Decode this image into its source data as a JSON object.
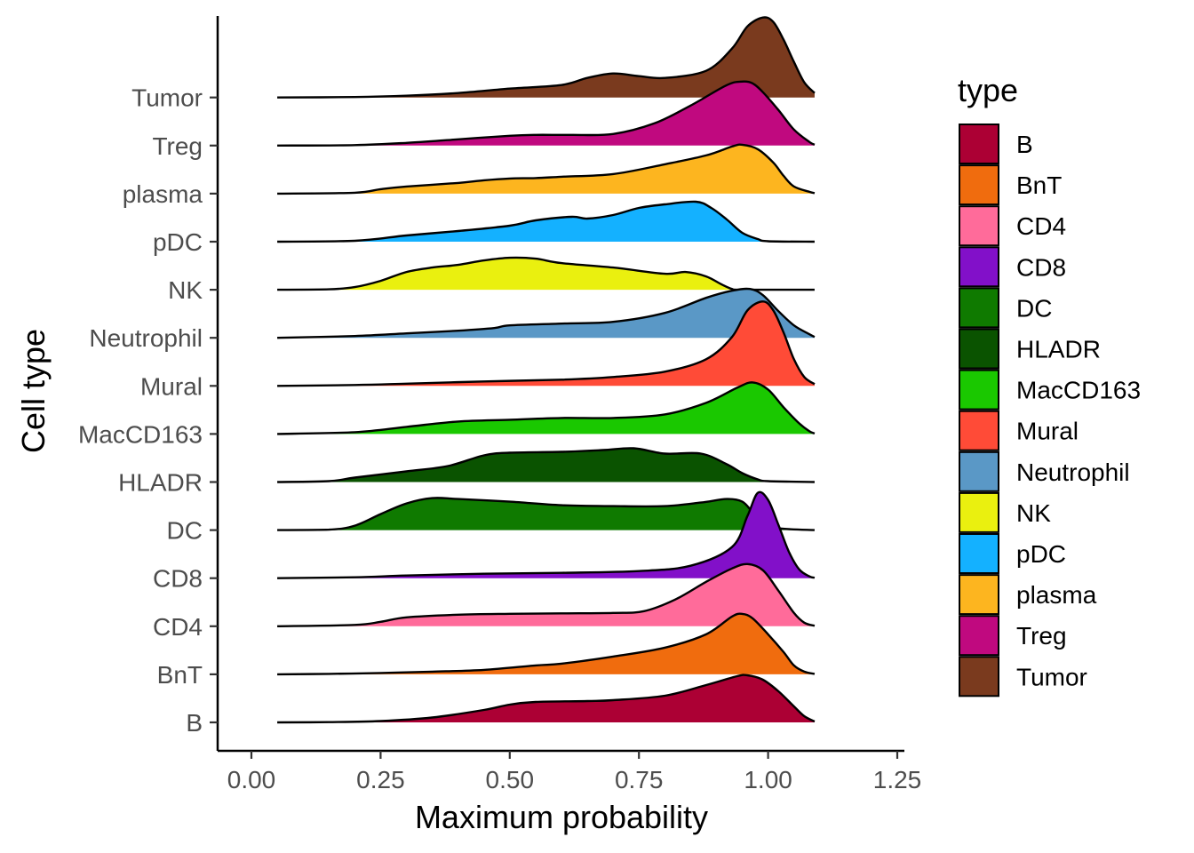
{
  "chart_data": {
    "type": "area",
    "subtype": "ridgeline-density",
    "xlabel": "Maximum probability",
    "ylabel": "Cell type",
    "xlim": [
      0,
      1.25
    ],
    "xticks": [
      0.0,
      0.25,
      0.5,
      0.75,
      1.0,
      1.25
    ],
    "xtick_labels": [
      "0.00",
      "0.25",
      "0.50",
      "0.75",
      "1.00",
      "1.25"
    ],
    "density_range": [
      0.05,
      1.09
    ],
    "legend": {
      "title": "type",
      "position": "right"
    },
    "grid": false,
    "categories": [
      "B",
      "BnT",
      "CD4",
      "CD8",
      "DC",
      "HLADR",
      "MacCD163",
      "Mural",
      "Neutrophil",
      "NK",
      "pDC",
      "plasma",
      "Treg",
      "Tumor"
    ],
    "series": [
      {
        "name": "B",
        "color": "#AC0034",
        "points": [
          [
            0.05,
            0
          ],
          [
            0.15,
            0.3
          ],
          [
            0.25,
            1.5
          ],
          [
            0.35,
            5.5
          ],
          [
            0.45,
            14
          ],
          [
            0.5,
            20
          ],
          [
            0.55,
            23
          ],
          [
            0.65,
            24
          ],
          [
            0.7,
            25
          ],
          [
            0.8,
            30
          ],
          [
            0.88,
            42
          ],
          [
            0.94,
            52
          ],
          [
            0.96,
            53
          ],
          [
            0.99,
            48
          ],
          [
            1.02,
            35
          ],
          [
            1.05,
            18
          ],
          [
            1.07,
            7
          ],
          [
            1.09,
            1
          ]
        ]
      },
      {
        "name": "BnT",
        "color": "#F06C0E",
        "points": [
          [
            0.05,
            0
          ],
          [
            0.15,
            0.5
          ],
          [
            0.25,
            1.5
          ],
          [
            0.35,
            3
          ],
          [
            0.45,
            5
          ],
          [
            0.55,
            10
          ],
          [
            0.6,
            12
          ],
          [
            0.7,
            20
          ],
          [
            0.8,
            30
          ],
          [
            0.88,
            45
          ],
          [
            0.93,
            65
          ],
          [
            0.95,
            68
          ],
          [
            0.97,
            63
          ],
          [
            1.0,
            45
          ],
          [
            1.03,
            25
          ],
          [
            1.05,
            10
          ],
          [
            1.07,
            3
          ],
          [
            1.09,
            0.5
          ]
        ]
      },
      {
        "name": "CD4",
        "color": "#FF6B9A",
        "points": [
          [
            0.05,
            0
          ],
          [
            0.2,
            1.5
          ],
          [
            0.25,
            5
          ],
          [
            0.3,
            10
          ],
          [
            0.4,
            13
          ],
          [
            0.5,
            14
          ],
          [
            0.6,
            14.5
          ],
          [
            0.7,
            15
          ],
          [
            0.76,
            17
          ],
          [
            0.82,
            30
          ],
          [
            0.88,
            50
          ],
          [
            0.93,
            65
          ],
          [
            0.96,
            70
          ],
          [
            0.99,
            63
          ],
          [
            1.02,
            40
          ],
          [
            1.05,
            15
          ],
          [
            1.07,
            4
          ],
          [
            1.09,
            0.5
          ]
        ]
      },
      {
        "name": "CD8",
        "color": "#8210C9",
        "points": [
          [
            0.05,
            0
          ],
          [
            0.2,
            1
          ],
          [
            0.3,
            3
          ],
          [
            0.45,
            5
          ],
          [
            0.6,
            6
          ],
          [
            0.75,
            8
          ],
          [
            0.85,
            14
          ],
          [
            0.93,
            35
          ],
          [
            0.96,
            70
          ],
          [
            0.98,
            96
          ],
          [
            1.0,
            88
          ],
          [
            1.02,
            60
          ],
          [
            1.04,
            30
          ],
          [
            1.06,
            10
          ],
          [
            1.08,
            2
          ],
          [
            1.09,
            0.5
          ]
        ]
      },
      {
        "name": "DC",
        "color": "#0F7A00",
        "points": [
          [
            0.05,
            0
          ],
          [
            0.15,
            0.5
          ],
          [
            0.2,
            5
          ],
          [
            0.25,
            18
          ],
          [
            0.3,
            30
          ],
          [
            0.35,
            36
          ],
          [
            0.4,
            35
          ],
          [
            0.5,
            32
          ],
          [
            0.6,
            28
          ],
          [
            0.7,
            27
          ],
          [
            0.8,
            27
          ],
          [
            0.87,
            31
          ],
          [
            0.92,
            35
          ],
          [
            0.95,
            32
          ],
          [
            0.97,
            20
          ],
          [
            0.99,
            8
          ],
          [
            1.02,
            2
          ],
          [
            1.09,
            0
          ]
        ]
      },
      {
        "name": "HLADR",
        "color": "#0A5300",
        "points": [
          [
            0.05,
            0
          ],
          [
            0.15,
            1
          ],
          [
            0.2,
            5
          ],
          [
            0.3,
            12
          ],
          [
            0.38,
            18
          ],
          [
            0.45,
            30
          ],
          [
            0.5,
            33
          ],
          [
            0.6,
            34
          ],
          [
            0.68,
            36
          ],
          [
            0.74,
            38
          ],
          [
            0.8,
            32
          ],
          [
            0.87,
            32
          ],
          [
            0.92,
            20
          ],
          [
            0.95,
            10
          ],
          [
            0.98,
            3
          ],
          [
            1.0,
            1
          ],
          [
            1.09,
            0
          ]
        ]
      },
      {
        "name": "MacCD163",
        "color": "#1AC800",
        "points": [
          [
            0.05,
            0
          ],
          [
            0.2,
            2
          ],
          [
            0.3,
            8
          ],
          [
            0.4,
            14
          ],
          [
            0.5,
            16
          ],
          [
            0.6,
            18
          ],
          [
            0.7,
            18
          ],
          [
            0.8,
            22
          ],
          [
            0.88,
            35
          ],
          [
            0.94,
            52
          ],
          [
            0.97,
            58
          ],
          [
            1.0,
            50
          ],
          [
            1.03,
            30
          ],
          [
            1.06,
            12
          ],
          [
            1.08,
            3
          ],
          [
            1.09,
            0.5
          ]
        ]
      },
      {
        "name": "Mural",
        "color": "#FF4B37",
        "points": [
          [
            0.05,
            0
          ],
          [
            0.2,
            1
          ],
          [
            0.3,
            2.5
          ],
          [
            0.45,
            5
          ],
          [
            0.6,
            7
          ],
          [
            0.7,
            10
          ],
          [
            0.8,
            16
          ],
          [
            0.88,
            30
          ],
          [
            0.93,
            55
          ],
          [
            0.96,
            85
          ],
          [
            0.99,
            95
          ],
          [
            1.01,
            85
          ],
          [
            1.03,
            60
          ],
          [
            1.05,
            30
          ],
          [
            1.07,
            10
          ],
          [
            1.09,
            2
          ]
        ]
      },
      {
        "name": "Neutrophil",
        "color": "#5A98C6",
        "points": [
          [
            0.05,
            0
          ],
          [
            0.2,
            2
          ],
          [
            0.3,
            5
          ],
          [
            0.4,
            8
          ],
          [
            0.47,
            11
          ],
          [
            0.5,
            14
          ],
          [
            0.6,
            16
          ],
          [
            0.7,
            18
          ],
          [
            0.8,
            28
          ],
          [
            0.88,
            45
          ],
          [
            0.93,
            53
          ],
          [
            0.965,
            55
          ],
          [
            0.99,
            48
          ],
          [
            1.02,
            30
          ],
          [
            1.05,
            14
          ],
          [
            1.08,
            4
          ],
          [
            1.09,
            1
          ]
        ]
      },
      {
        "name": "NK",
        "color": "#EAF00F",
        "points": [
          [
            0.05,
            0
          ],
          [
            0.15,
            0.5
          ],
          [
            0.2,
            3
          ],
          [
            0.25,
            10
          ],
          [
            0.3,
            20
          ],
          [
            0.35,
            25
          ],
          [
            0.4,
            28
          ],
          [
            0.45,
            33
          ],
          [
            0.5,
            36
          ],
          [
            0.55,
            35
          ],
          [
            0.6,
            30
          ],
          [
            0.7,
            25
          ],
          [
            0.8,
            18
          ],
          [
            0.84,
            20
          ],
          [
            0.88,
            15
          ],
          [
            0.91,
            6
          ],
          [
            0.93,
            1
          ],
          [
            0.95,
            0
          ],
          [
            1.09,
            0
          ]
        ]
      },
      {
        "name": "pDC",
        "color": "#14B1FF",
        "points": [
          [
            0.05,
            0
          ],
          [
            0.2,
            1
          ],
          [
            0.3,
            7
          ],
          [
            0.4,
            12
          ],
          [
            0.5,
            18
          ],
          [
            0.55,
            24
          ],
          [
            0.62,
            28
          ],
          [
            0.65,
            26
          ],
          [
            0.7,
            30
          ],
          [
            0.75,
            38
          ],
          [
            0.8,
            42
          ],
          [
            0.86,
            45
          ],
          [
            0.89,
            38
          ],
          [
            0.92,
            25
          ],
          [
            0.95,
            10
          ],
          [
            0.98,
            3
          ],
          [
            1.0,
            0.5
          ],
          [
            1.09,
            0
          ]
        ]
      },
      {
        "name": "plasma",
        "color": "#FDB51F",
        "points": [
          [
            0.05,
            0
          ],
          [
            0.2,
            1
          ],
          [
            0.25,
            5
          ],
          [
            0.3,
            8
          ],
          [
            0.4,
            12
          ],
          [
            0.45,
            15
          ],
          [
            0.5,
            17
          ],
          [
            0.55,
            17.5
          ],
          [
            0.6,
            19
          ],
          [
            0.7,
            22
          ],
          [
            0.8,
            33
          ],
          [
            0.88,
            43
          ],
          [
            0.93,
            53
          ],
          [
            0.95,
            55
          ],
          [
            0.98,
            50
          ],
          [
            1.01,
            35
          ],
          [
            1.03,
            20
          ],
          [
            1.05,
            8
          ],
          [
            1.08,
            2
          ],
          [
            1.09,
            0.5
          ]
        ]
      },
      {
        "name": "Treg",
        "color": "#C0097F",
        "points": [
          [
            0.05,
            0
          ],
          [
            0.2,
            0.5
          ],
          [
            0.3,
            3
          ],
          [
            0.4,
            7
          ],
          [
            0.5,
            11
          ],
          [
            0.55,
            12
          ],
          [
            0.62,
            12
          ],
          [
            0.7,
            13
          ],
          [
            0.78,
            25
          ],
          [
            0.85,
            45
          ],
          [
            0.92,
            68
          ],
          [
            0.95,
            72
          ],
          [
            0.97,
            70
          ],
          [
            0.99,
            60
          ],
          [
            1.02,
            40
          ],
          [
            1.05,
            18
          ],
          [
            1.08,
            4
          ],
          [
            1.09,
            1
          ]
        ]
      },
      {
        "name": "Tumor",
        "color": "#7A3A1E",
        "points": [
          [
            0.05,
            0
          ],
          [
            0.2,
            0.5
          ],
          [
            0.3,
            2
          ],
          [
            0.4,
            5
          ],
          [
            0.5,
            10
          ],
          [
            0.6,
            14
          ],
          [
            0.65,
            22
          ],
          [
            0.7,
            27
          ],
          [
            0.75,
            24
          ],
          [
            0.8,
            22
          ],
          [
            0.88,
            30
          ],
          [
            0.93,
            55
          ],
          [
            0.96,
            80
          ],
          [
            0.99,
            90
          ],
          [
            1.01,
            85
          ],
          [
            1.03,
            65
          ],
          [
            1.05,
            40
          ],
          [
            1.07,
            17
          ],
          [
            1.09,
            5
          ]
        ]
      }
    ]
  }
}
